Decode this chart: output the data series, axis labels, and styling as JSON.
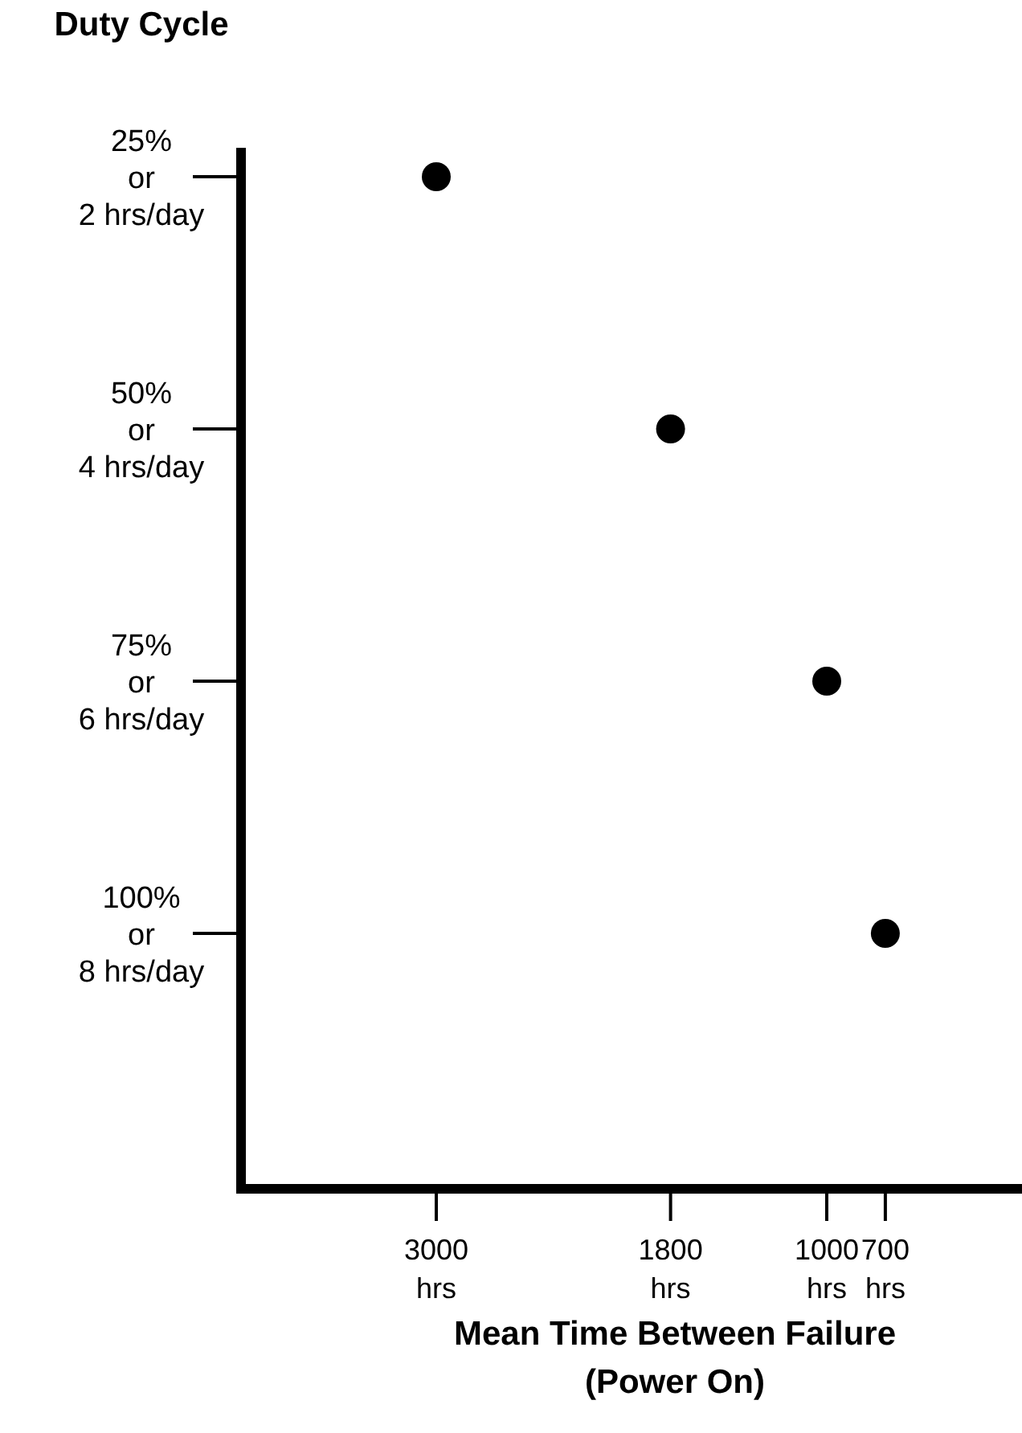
{
  "chart_data": {
    "type": "scatter",
    "orientation": "horizontal",
    "ylabel": "Duty Cycle",
    "xlabel": "Mean Time Between Failure\n(Power On)",
    "categories": [
      "25%\nor\n2 hrs/day",
      "50%\nor\n4 hrs/day",
      "75%\nor\n6 hrs/day",
      "100%\nor\n8 hrs/day"
    ],
    "values": [
      3000,
      1800,
      1000,
      700
    ],
    "color": "#000000",
    "marker": "circle",
    "grid": false,
    "xlim": [
      4000,
      0
    ],
    "xticks": [
      {
        "value": 3000,
        "label": "3000\nhrs"
      },
      {
        "value": 1800,
        "label": "1800\nhrs"
      },
      {
        "value": 1000,
        "label": "1000\nhrs"
      },
      {
        "value": 700,
        "label": "700\nhrs"
      }
    ]
  }
}
